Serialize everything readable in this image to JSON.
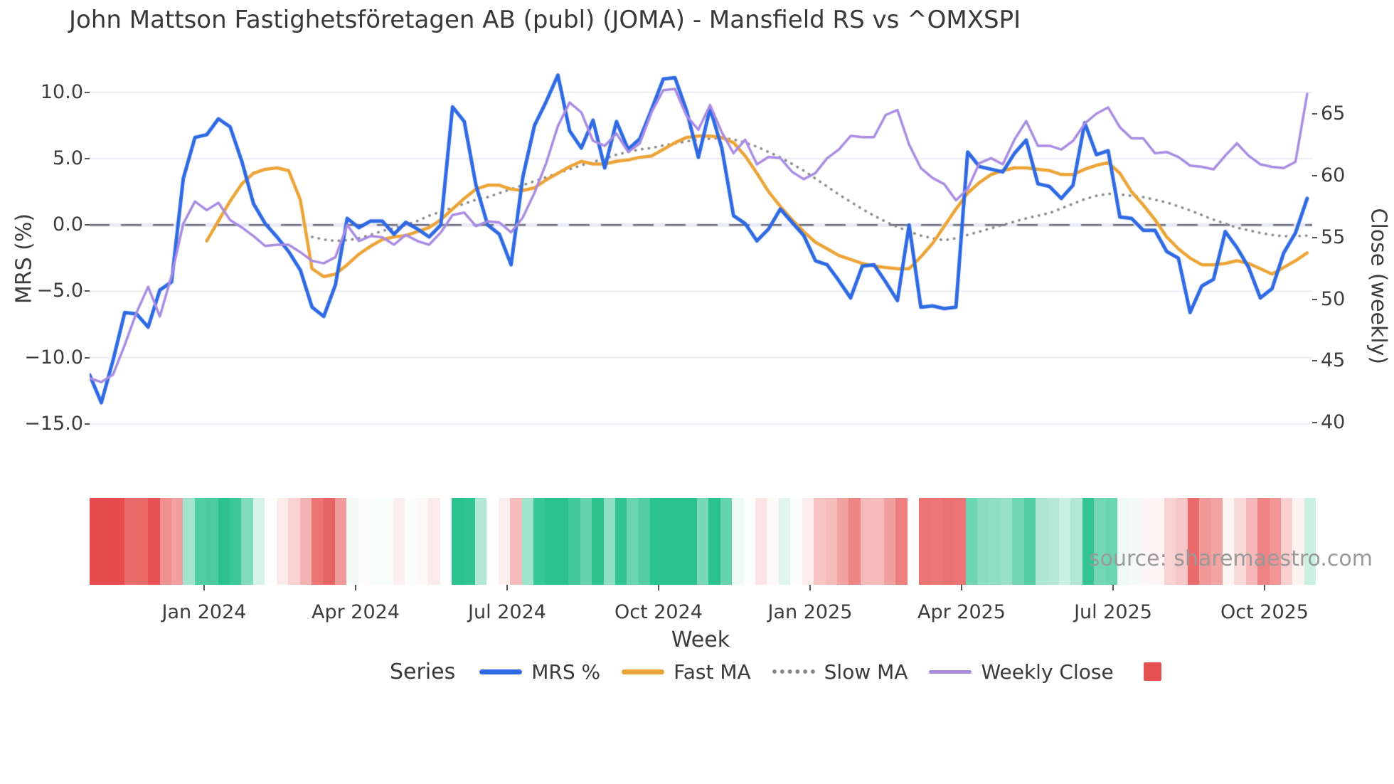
{
  "title": "John Mattson Fastighetsföretagen AB (publ) (JOMA) - Mansfield RS vs ^OMXSPI",
  "source_note": "source: sharemaestro.com",
  "axes": {
    "left": {
      "label": "MRS (%)",
      "tick_labels": [
        "10.0",
        "5.0",
        "0.0",
        "−5.0",
        "−10.0",
        "−15.0"
      ],
      "tick_values": [
        10,
        5,
        0,
        -5,
        -10,
        -15
      ],
      "range": [
        -17.9,
        12.4
      ]
    },
    "right": {
      "label": "Close (weekly)",
      "tick_labels": [
        "65",
        "60",
        "55",
        "50",
        "45",
        "40"
      ],
      "tick_values": [
        65,
        60,
        55,
        50,
        45,
        40
      ],
      "range": [
        36.8,
        69.3
      ]
    },
    "x": {
      "label": "Week",
      "tick_labels": [
        "Jan 2024",
        "Apr 2024",
        "Jul 2024",
        "Oct 2024",
        "Jan 2025",
        "Apr 2025",
        "Jul 2025",
        "Oct 2025"
      ],
      "tick_weeks": [
        9.78,
        22.72,
        35.66,
        48.6,
        61.54,
        74.48,
        87.42,
        100.36
      ],
      "week_range": [
        0,
        104.43
      ]
    }
  },
  "legend": {
    "title": "Series",
    "items": [
      {
        "label": "MRS %",
        "color": "#2f6ae3",
        "style": "line"
      },
      {
        "label": "Fast MA",
        "color": "#eca437",
        "style": "line"
      },
      {
        "label": "Slow MA",
        "color": "#8a8a8a",
        "style": "dotted"
      },
      {
        "label": "Weekly Close",
        "color": "#a98ce2",
        "style": "thin-line"
      }
    ],
    "heatmap_swatch_color": "#e55150"
  },
  "chart_data": {
    "type": "line",
    "x_unit": "week index (weekly samples, ~Nov 2023 to Nov 2025)",
    "grid": true,
    "zero_line": {
      "value": 0,
      "axis": "left",
      "style": "dashed",
      "color": "#6e6e7a"
    },
    "series": [
      {
        "name": "MRS %",
        "axis": "left",
        "color": "#2f6ae3",
        "width": 5,
        "style": "solid",
        "values": [
          -11.3,
          -13.4,
          -10.2,
          -6.6,
          -6.7,
          -7.7,
          -4.9,
          -4.3,
          3.5,
          6.6,
          6.8,
          8.0,
          7.4,
          4.8,
          1.6,
          0.1,
          -0.9,
          -2.0,
          -3.4,
          -6.2,
          -6.9,
          -4.5,
          0.5,
          -0.2,
          0.3,
          0.3,
          -0.7,
          0.2,
          -0.3,
          -0.9,
          0.0,
          8.9,
          7.8,
          3.0,
          0.0,
          -0.7,
          -3.0,
          3.6,
          7.5,
          9.3,
          11.3,
          7.1,
          5.8,
          7.9,
          4.3,
          7.8,
          5.7,
          6.5,
          8.7,
          11.0,
          11.1,
          8.6,
          5.1,
          8.8,
          5.8,
          0.7,
          0.1,
          -1.2,
          -0.3,
          1.2,
          0.2,
          -0.8,
          -2.7,
          -3.0,
          -4.2,
          -5.5,
          -3.1,
          -3.0,
          -4.3,
          -5.7,
          0.0,
          -6.2,
          -6.1,
          -6.3,
          -6.2,
          5.5,
          4.4,
          4.2,
          4.0,
          5.4,
          6.4,
          3.1,
          2.9,
          2.0,
          3.0,
          7.7,
          5.3,
          5.6,
          0.6,
          0.5,
          -0.4,
          -0.4,
          -2.0,
          -2.5,
          -6.6,
          -4.6,
          -4.1,
          -0.5,
          -1.7,
          -3.2,
          -5.5,
          -4.8,
          -2.1,
          -0.6,
          2.0
        ]
      },
      {
        "name": "Fast MA",
        "axis": "left",
        "color": "#eca437",
        "width": 4.5,
        "style": "solid",
        "values": [
          null,
          null,
          null,
          null,
          null,
          null,
          null,
          null,
          null,
          null,
          -1.2,
          0.3,
          1.8,
          3.1,
          3.9,
          4.2,
          4.3,
          4.1,
          1.9,
          -3.3,
          -3.9,
          -3.7,
          -3.0,
          -2.2,
          -1.6,
          -1.1,
          -0.9,
          -0.8,
          -0.5,
          -0.2,
          0.4,
          1.2,
          2.0,
          2.7,
          3.0,
          3.0,
          2.7,
          2.6,
          2.8,
          3.4,
          3.9,
          4.4,
          4.8,
          4.6,
          4.6,
          4.8,
          4.9,
          5.1,
          5.2,
          5.7,
          6.2,
          6.6,
          6.7,
          6.7,
          6.6,
          6.2,
          5.2,
          3.9,
          2.5,
          1.4,
          0.4,
          -0.5,
          -1.3,
          -1.8,
          -2.3,
          -2.6,
          -2.9,
          -3.1,
          -3.2,
          -3.3,
          -3.3,
          -2.4,
          -1.4,
          -0.1,
          1.2,
          2.4,
          3.2,
          3.8,
          4.1,
          4.3,
          4.3,
          4.2,
          4.1,
          3.8,
          3.8,
          4.2,
          4.5,
          4.7,
          3.9,
          2.5,
          1.5,
          0.4,
          -0.9,
          -1.8,
          -2.5,
          -3.0,
          -3.0,
          -2.9,
          -2.7,
          -2.9,
          -3.3,
          -3.7,
          -3.2,
          -2.7,
          -2.1
        ]
      },
      {
        "name": "Slow MA",
        "axis": "left",
        "color": "#8a8a8a",
        "width": 3.6,
        "style": "dotted",
        "values": [
          null,
          null,
          null,
          null,
          null,
          null,
          null,
          null,
          null,
          null,
          null,
          null,
          null,
          null,
          null,
          null,
          null,
          null,
          null,
          -0.9,
          -1.1,
          -1.2,
          -1.15,
          -1.0,
          -0.75,
          -0.45,
          -0.25,
          0.0,
          0.3,
          0.7,
          1.0,
          1.3,
          1.6,
          1.9,
          2.1,
          2.4,
          2.7,
          3.0,
          3.3,
          3.6,
          3.9,
          4.2,
          4.5,
          4.75,
          5.0,
          5.3,
          5.5,
          5.7,
          5.8,
          6.0,
          6.15,
          6.3,
          6.45,
          6.5,
          6.55,
          6.45,
          6.2,
          5.9,
          5.5,
          5.1,
          4.6,
          4.1,
          3.5,
          2.9,
          2.3,
          1.75,
          1.2,
          0.7,
          0.25,
          -0.15,
          -0.5,
          -0.8,
          -1.0,
          -1.15,
          -1.0,
          -0.75,
          -0.5,
          -0.25,
          0.0,
          0.25,
          0.5,
          0.7,
          0.9,
          1.25,
          1.6,
          1.95,
          2.2,
          2.35,
          2.3,
          2.2,
          2.1,
          1.9,
          1.7,
          1.4,
          1.1,
          0.75,
          0.4,
          0.1,
          -0.2,
          -0.4,
          -0.6,
          -0.75,
          -0.85,
          -0.85,
          -0.8
        ]
      },
      {
        "name": "Weekly Close",
        "axis": "right",
        "color": "#a98ce2",
        "width": 3.5,
        "style": "solid",
        "values": [
          43.6,
          43.3,
          43.9,
          46.3,
          48.9,
          51.0,
          48.6,
          51.9,
          56.1,
          57.9,
          57.2,
          57.8,
          56.4,
          55.8,
          55.1,
          54.3,
          54.4,
          54.4,
          53.8,
          53.1,
          52.9,
          53.4,
          56.0,
          54.7,
          55.1,
          55.0,
          54.4,
          55.2,
          54.7,
          54.4,
          55.4,
          56.8,
          57.0,
          55.9,
          56.3,
          56.2,
          55.4,
          56.6,
          58.6,
          61.0,
          64.0,
          65.9,
          65.1,
          62.8,
          62.4,
          63.4,
          61.9,
          62.6,
          65.1,
          66.9,
          67.0,
          64.8,
          63.7,
          65.7,
          63.5,
          61.8,
          62.9,
          60.9,
          61.5,
          61.4,
          60.3,
          59.7,
          60.2,
          61.4,
          62.1,
          63.2,
          63.1,
          63.1,
          64.9,
          65.3,
          62.5,
          60.6,
          59.8,
          59.3,
          58.0,
          58.9,
          61.0,
          61.4,
          60.9,
          62.9,
          64.4,
          62.4,
          62.4,
          62.1,
          62.8,
          64.2,
          65.0,
          65.5,
          63.9,
          63.0,
          63.0,
          61.8,
          61.9,
          61.5,
          60.8,
          60.7,
          60.5,
          61.6,
          62.6,
          61.6,
          60.9,
          60.7,
          60.6,
          61.1,
          66.6
        ]
      }
    ],
    "heatmap": {
      "description": "weekly relative-strength color band, red negative / green positive, derived from MRS % values",
      "source_series": "MRS %",
      "negative_color": "#e64c4c",
      "positive_color": "#2cc28f",
      "neutral_color": "#ffffff",
      "saturation_abs_value": 8
    }
  }
}
